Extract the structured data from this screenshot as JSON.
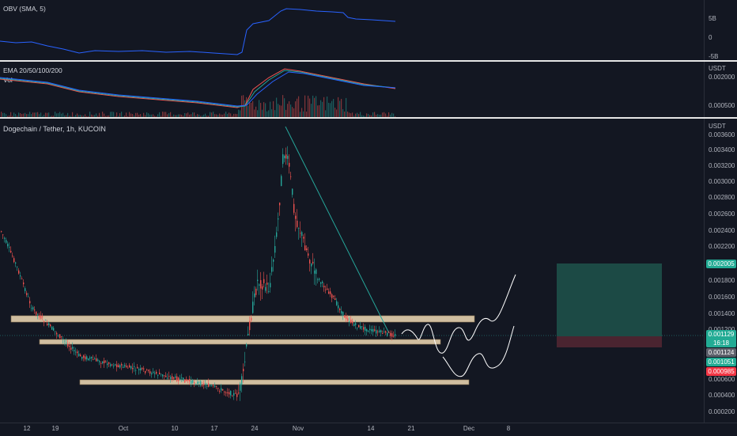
{
  "obv": {
    "legend": "OBV (SMA, 5)",
    "axis": [
      "5B",
      "0",
      "-5B"
    ]
  },
  "ema": {
    "legend": "EMA 20/50/100/200",
    "vol": "Vol",
    "unit": "USDT",
    "axis": [
      "0.002000",
      "0.000500"
    ]
  },
  "main": {
    "legend": "Dogechain / Tether, 1h, KUCOIN",
    "unit": "USDT",
    "axis": [
      "0.003600",
      "0.003400",
      "0.003200",
      "0.003000",
      "0.002800",
      "0.002600",
      "0.002400",
      "0.002200",
      "0.001800",
      "0.001600",
      "0.001400",
      "0.001200",
      "0.000600",
      "0.000400",
      "0.000200"
    ],
    "tags": {
      "target": "0.002005",
      "last": "0.001129",
      "countdown": "16:18",
      "t1": "0.001124",
      "t2": "0.001051",
      "stop": "0.000985"
    }
  },
  "xaxis": [
    "12",
    "19",
    "Oct",
    "10",
    "17",
    "24",
    "Nov",
    "14",
    "21",
    "Dec",
    "8"
  ],
  "colors": {
    "bg": "#131722",
    "up": "#26a69a",
    "down": "#ef5350",
    "obv_line": "#2962ff",
    "zone": "#f2dcb6",
    "target_zone": "#1c4a45",
    "stop_zone": "#4a2430"
  }
}
